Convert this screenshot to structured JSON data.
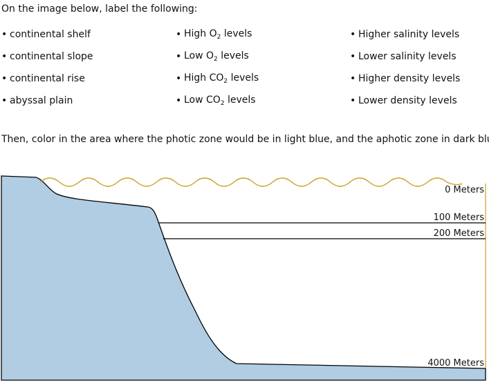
{
  "instructions": {
    "label_intro": "On the image below, label the following:",
    "color_instruction": "Then, color in the area where the photic zone would be in light blue, and the aphotic zone in dark blue."
  },
  "bullet": "•",
  "columns": [
    {
      "items": [
        {
          "pre": "continental shelf",
          "sub": "",
          "post": ""
        },
        {
          "pre": "continental slope",
          "sub": "",
          "post": ""
        },
        {
          "pre": "continental rise",
          "sub": "",
          "post": ""
        },
        {
          "pre": "abyssal plain",
          "sub": "",
          "post": ""
        }
      ]
    },
    {
      "items": [
        {
          "pre": "High O",
          "sub": "2",
          "post": " levels"
        },
        {
          "pre": "Low O",
          "sub": "2",
          "post": " levels"
        },
        {
          "pre": "High CO",
          "sub": "2",
          "post": " levels"
        },
        {
          "pre": "Low CO",
          "sub": "2",
          "post": " levels"
        }
      ]
    },
    {
      "items": [
        {
          "pre": "Higher salinity levels",
          "sub": "",
          "post": ""
        },
        {
          "pre": "Lower salinity levels",
          "sub": "",
          "post": ""
        },
        {
          "pre": "Higher density levels",
          "sub": "",
          "post": ""
        },
        {
          "pre": "Lower density levels",
          "sub": "",
          "post": ""
        }
      ]
    }
  ],
  "diagram": {
    "depth_labels": {
      "zero": "0 Meters",
      "hundred": "100 Meters",
      "two_hundred": "200 Meters",
      "four_thousand": "4000 Meters"
    },
    "colors": {
      "land_fill": "#b0cde3",
      "water_surface": "#c9a227",
      "outline": "#000000",
      "right_border": "#c9a227"
    }
  }
}
